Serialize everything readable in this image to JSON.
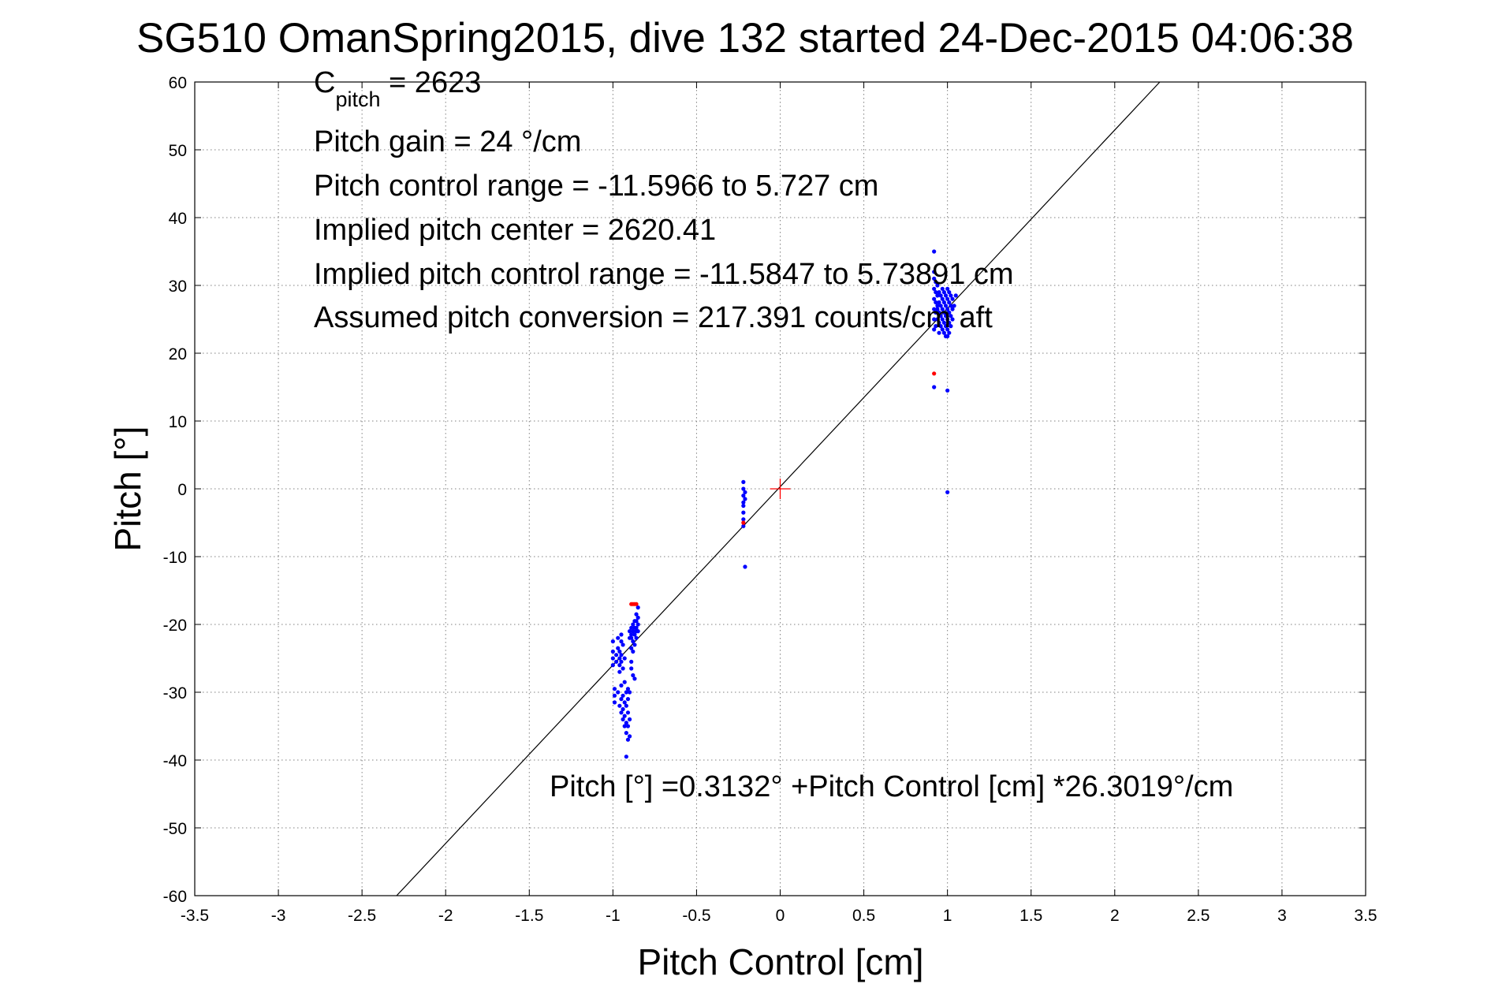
{
  "chart_data": {
    "type": "scatter",
    "title": "SG510 OmanSpring2015, dive 132 started 24-Dec-2015 04:06:38",
    "xlabel": "Pitch Control [cm]",
    "ylabel": "Pitch [°]",
    "xlim": [
      -3.5,
      3.5
    ],
    "ylim": [
      -60,
      60
    ],
    "x_ticks": [
      -3.5,
      -3,
      -2.5,
      -2,
      -1.5,
      -1,
      -0.5,
      0,
      0.5,
      1,
      1.5,
      2,
      2.5,
      3,
      3.5
    ],
    "x_tick_labels": [
      "-3.5",
      "-3",
      "-2.5",
      "-2",
      "-1.5",
      "-1",
      "-0.5",
      "0",
      "0.5",
      "1",
      "1.5",
      "2",
      "2.5",
      "3",
      "3.5"
    ],
    "y_ticks": [
      -60,
      -50,
      -40,
      -30,
      -20,
      -10,
      0,
      10,
      20,
      30,
      40,
      50,
      60
    ],
    "y_tick_labels": [
      "-60",
      "-50",
      "-40",
      "-30",
      "-20",
      "-10",
      "0",
      "10",
      "20",
      "30",
      "40",
      "50",
      "60"
    ],
    "grid": true,
    "annotations": {
      "c_pitch_main": "C",
      "c_pitch_sub": "pitch",
      "c_pitch_value": " = 2623",
      "pitch_gain": "Pitch gain = 24 °/cm",
      "control_range": "Pitch control range = -11.5966 to 5.727 cm",
      "implied_center": "Implied pitch center = 2620.41",
      "implied_range": "Implied pitch control range = -11.5847 to 5.73891 cm",
      "conversion": "Assumed pitch conversion = 217.391 counts/cm aft",
      "fit_equation": "Pitch [°] =0.3132° +Pitch Control [cm] *26.3019°/cm"
    },
    "fit_line": {
      "intercept": 0.3132,
      "slope": 26.3019,
      "color": "#000000"
    },
    "center_marker": {
      "x": 0,
      "y": 0,
      "color": "#ff0000"
    },
    "series": [
      {
        "color": "#0000ff",
        "points": [
          [
            -1.0,
            -22.5
          ],
          [
            -1.0,
            -24.0
          ],
          [
            -1.0,
            -25.0
          ],
          [
            -1.0,
            -26.0
          ],
          [
            -0.99,
            -29.5
          ],
          [
            -0.99,
            -30.5
          ],
          [
            -0.99,
            -31.5
          ],
          [
            -0.98,
            -24.5
          ],
          [
            -0.98,
            -25.5
          ],
          [
            -0.97,
            -22.0
          ],
          [
            -0.97,
            -23.5
          ],
          [
            -0.97,
            -30.0
          ],
          [
            -0.96,
            -24.0
          ],
          [
            -0.96,
            -25.0
          ],
          [
            -0.96,
            -26.0
          ],
          [
            -0.96,
            -27.0
          ],
          [
            -0.96,
            -32.0
          ],
          [
            -0.95,
            -21.5
          ],
          [
            -0.95,
            -22.5
          ],
          [
            -0.95,
            -24.5
          ],
          [
            -0.95,
            -25.5
          ],
          [
            -0.95,
            -29.0
          ],
          [
            -0.95,
            -31.0
          ],
          [
            -0.95,
            -33.0
          ],
          [
            -0.94,
            -23.0
          ],
          [
            -0.94,
            -26.5
          ],
          [
            -0.94,
            -30.5
          ],
          [
            -0.94,
            -32.5
          ],
          [
            -0.94,
            -34.0
          ],
          [
            -0.93,
            -25.0
          ],
          [
            -0.93,
            -28.5
          ],
          [
            -0.93,
            -31.5
          ],
          [
            -0.93,
            -33.5
          ],
          [
            -0.93,
            -35.0
          ],
          [
            -0.92,
            -30.0
          ],
          [
            -0.92,
            -32.0
          ],
          [
            -0.92,
            -34.5
          ],
          [
            -0.92,
            -36.0
          ],
          [
            -0.91,
            -29.5
          ],
          [
            -0.91,
            -31.0
          ],
          [
            -0.91,
            -33.0
          ],
          [
            -0.91,
            -35.0
          ],
          [
            -0.91,
            -37.0
          ],
          [
            -0.9,
            -22.0
          ],
          [
            -0.9,
            -21.0
          ],
          [
            -0.9,
            -30.0
          ],
          [
            -0.9,
            -34.0
          ],
          [
            -0.9,
            -36.5
          ],
          [
            -0.89,
            -20.5
          ],
          [
            -0.89,
            -21.5
          ],
          [
            -0.89,
            -22.0
          ],
          [
            -0.89,
            -23.5
          ],
          [
            -0.89,
            -25.5
          ],
          [
            -0.89,
            -26.5
          ],
          [
            -0.88,
            -20.0
          ],
          [
            -0.88,
            -21.0
          ],
          [
            -0.88,
            -22.5
          ],
          [
            -0.88,
            -24.0
          ],
          [
            -0.88,
            -27.5
          ],
          [
            -0.87,
            -19.5
          ],
          [
            -0.87,
            -20.5
          ],
          [
            -0.87,
            -21.5
          ],
          [
            -0.87,
            -23.0
          ],
          [
            -0.87,
            -28.0
          ],
          [
            -0.86,
            -18.5
          ],
          [
            -0.86,
            -19.5
          ],
          [
            -0.86,
            -20.5
          ],
          [
            -0.86,
            -21.0
          ],
          [
            -0.86,
            -22.0
          ],
          [
            -0.85,
            -17.5
          ],
          [
            -0.85,
            -19.0
          ],
          [
            -0.85,
            -20.0
          ],
          [
            -0.85,
            -21.0
          ],
          [
            -0.92,
            -39.5
          ],
          [
            -0.22,
            1.0
          ],
          [
            -0.22,
            0.0
          ],
          [
            -0.22,
            -1.0
          ],
          [
            -0.22,
            -2.0
          ],
          [
            -0.22,
            -2.5
          ],
          [
            -0.22,
            -3.5
          ],
          [
            -0.22,
            -4.5
          ],
          [
            -0.22,
            -5.5
          ],
          [
            -0.21,
            -0.5
          ],
          [
            -0.21,
            -1.5
          ],
          [
            -0.21,
            -11.5
          ],
          [
            0.92,
            15.0
          ],
          [
            0.92,
            23.5
          ],
          [
            0.92,
            25.0
          ],
          [
            0.92,
            26.5
          ],
          [
            0.92,
            28.0
          ],
          [
            0.92,
            29.5
          ],
          [
            0.92,
            31.0
          ],
          [
            0.92,
            32.0
          ],
          [
            0.92,
            35.0
          ],
          [
            0.93,
            24.0
          ],
          [
            0.93,
            26.0
          ],
          [
            0.93,
            27.5
          ],
          [
            0.93,
            29.0
          ],
          [
            0.93,
            30.5
          ],
          [
            0.94,
            25.0
          ],
          [
            0.94,
            26.5
          ],
          [
            0.94,
            27.0
          ],
          [
            0.94,
            28.5
          ],
          [
            0.94,
            30.0
          ],
          [
            0.95,
            23.0
          ],
          [
            0.95,
            24.5
          ],
          [
            0.95,
            26.0
          ],
          [
            0.95,
            27.5
          ],
          [
            0.95,
            29.0
          ],
          [
            0.96,
            24.0
          ],
          [
            0.96,
            25.5
          ],
          [
            0.96,
            27.0
          ],
          [
            0.96,
            28.5
          ],
          [
            0.97,
            23.5
          ],
          [
            0.97,
            25.0
          ],
          [
            0.97,
            26.5
          ],
          [
            0.97,
            28.0
          ],
          [
            0.97,
            29.5
          ],
          [
            0.98,
            23.0
          ],
          [
            0.98,
            24.5
          ],
          [
            0.98,
            26.0
          ],
          [
            0.98,
            27.5
          ],
          [
            0.98,
            29.0
          ],
          [
            0.99,
            22.5
          ],
          [
            0.99,
            24.0
          ],
          [
            0.99,
            25.5
          ],
          [
            0.99,
            27.0
          ],
          [
            0.99,
            28.5
          ],
          [
            1.0,
            22.5
          ],
          [
            1.0,
            23.5
          ],
          [
            1.0,
            25.0
          ],
          [
            1.0,
            26.5
          ],
          [
            1.0,
            28.0
          ],
          [
            1.0,
            29.5
          ],
          [
            1.0,
            14.5
          ],
          [
            1.0,
            -0.5
          ],
          [
            1.01,
            23.0
          ],
          [
            1.01,
            24.5
          ],
          [
            1.01,
            26.0
          ],
          [
            1.01,
            27.5
          ],
          [
            1.01,
            29.0
          ],
          [
            1.02,
            24.0
          ],
          [
            1.02,
            25.5
          ],
          [
            1.02,
            27.0
          ],
          [
            1.02,
            28.5
          ],
          [
            1.03,
            25.0
          ],
          [
            1.03,
            26.5
          ],
          [
            1.03,
            28.0
          ],
          [
            1.04,
            27.0
          ],
          [
            1.05,
            28.5
          ]
        ]
      },
      {
        "color": "#ff0000",
        "points": [
          [
            -0.89,
            -17.0
          ],
          [
            -0.88,
            -17.0
          ],
          [
            -0.87,
            -17.0
          ],
          [
            -0.86,
            -17.0
          ],
          [
            -0.22,
            -5.0
          ],
          [
            0.92,
            17.0
          ]
        ]
      }
    ]
  }
}
